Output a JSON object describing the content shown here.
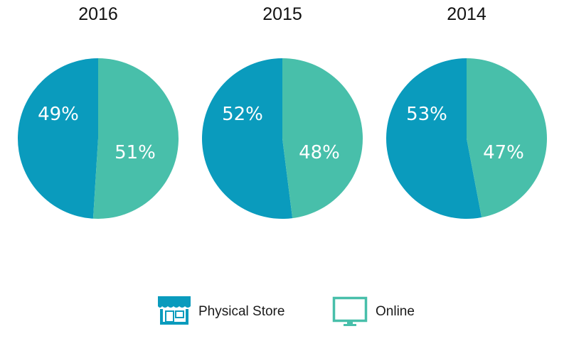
{
  "chart_data": [
    {
      "type": "pie",
      "title": "2016",
      "slices": [
        {
          "label": "Physical Store",
          "value": 49,
          "display": "49%"
        },
        {
          "label": "Online",
          "value": 51,
          "display": "51%"
        }
      ]
    },
    {
      "type": "pie",
      "title": "2015",
      "slices": [
        {
          "label": "Physical Store",
          "value": 52,
          "display": "52%"
        },
        {
          "label": "Online",
          "value": 48,
          "display": "48%"
        }
      ]
    },
    {
      "type": "pie",
      "title": "2014",
      "slices": [
        {
          "label": "Physical Store",
          "value": 53,
          "display": "53%"
        },
        {
          "label": "Online",
          "value": 47,
          "display": "47%"
        }
      ]
    }
  ],
  "legend": {
    "items": [
      {
        "label": "Physical Store",
        "color": "#0a9bbd",
        "icon": "storefront-icon"
      },
      {
        "label": "Online",
        "color": "#48bfaa",
        "icon": "monitor-icon"
      }
    ]
  },
  "colors": {
    "physical_store": "#0a9bbd",
    "online": "#48bfaa"
  }
}
